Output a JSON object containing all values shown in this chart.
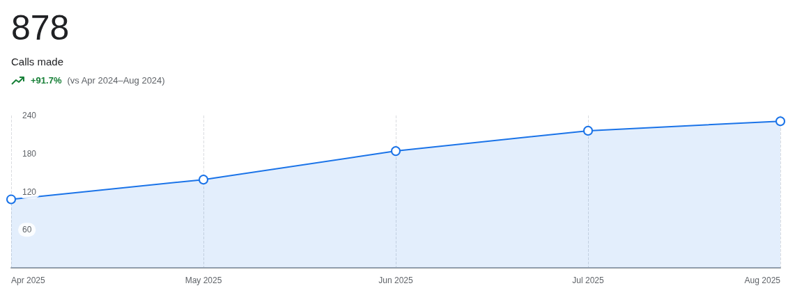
{
  "chart_data": {
    "type": "area",
    "title": "878",
    "subtitle": "Calls made",
    "annotations": [
      "+91.7%",
      "(vs Apr 2024–Aug 2024)"
    ],
    "categories": [
      "Apr 2025",
      "May 2025",
      "Jun 2025",
      "Jul 2025",
      "Aug 2025"
    ],
    "series": [
      {
        "color": "#1a73e8",
        "values": [
          108,
          139,
          184,
          216,
          231
        ]
      }
    ],
    "ylim": [
      0,
      240
    ],
    "yticks": [
      60,
      120,
      180,
      240
    ],
    "grid": "x",
    "marker": "circle",
    "line_style": "solid"
  }
}
